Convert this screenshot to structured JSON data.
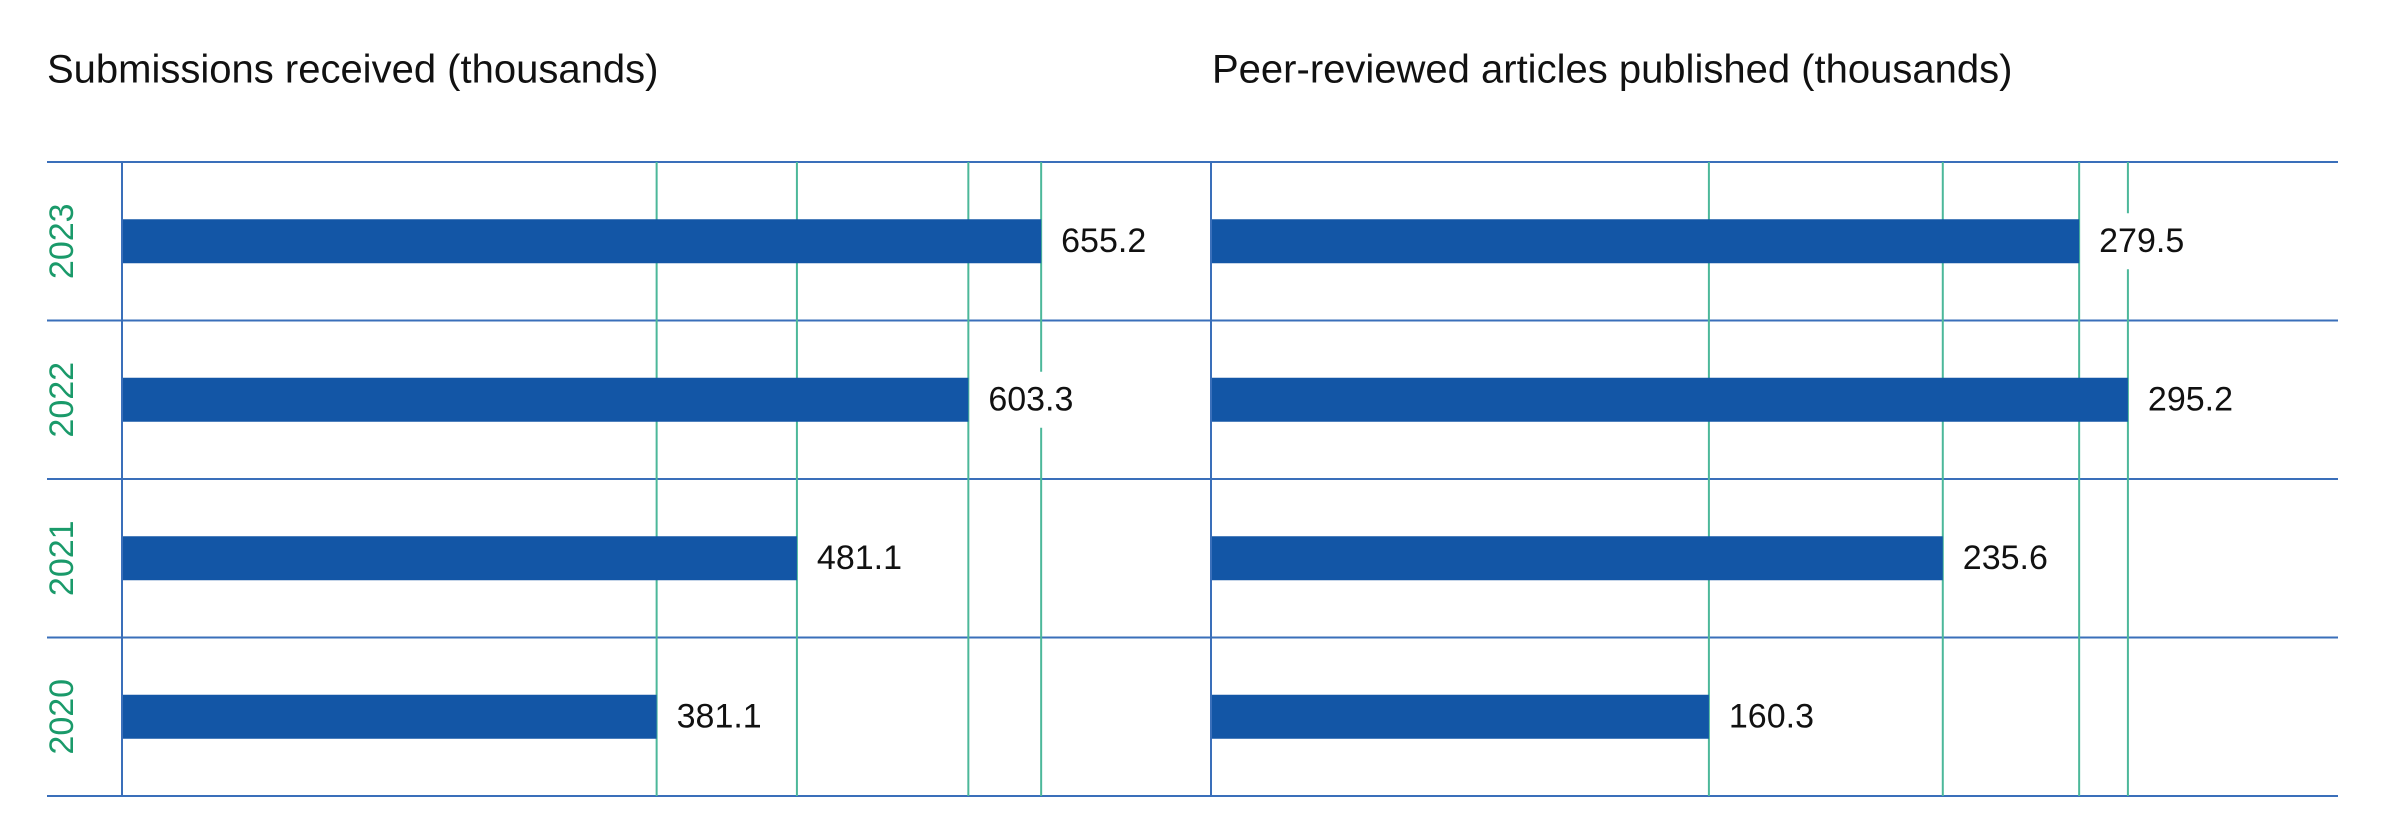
{
  "chart_data": [
    {
      "type": "bar",
      "orientation": "horizontal",
      "title": "Submissions received (thousands)",
      "categories": [
        "2023",
        "2022",
        "2021",
        "2020"
      ],
      "values": [
        655.2,
        603.3,
        481.1,
        381.1
      ],
      "color": "#1356a6",
      "xlim": [
        0,
        700
      ],
      "reference_lines": true
    },
    {
      "type": "bar",
      "orientation": "horizontal",
      "title": "Peer-reviewed articles published (thousands)",
      "categories": [
        "2023",
        "2022",
        "2021",
        "2020"
      ],
      "values": [
        279.5,
        295.2,
        235.6,
        160.3
      ],
      "color": "#1356a6",
      "xlim": [
        0,
        330
      ],
      "reference_lines": true
    }
  ]
}
